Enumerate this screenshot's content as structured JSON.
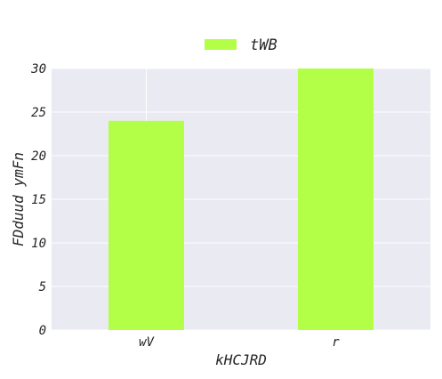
{
  "chart_data": {
    "type": "bar",
    "title": "",
    "xlabel": "kHCJRD",
    "ylabel": "FDduud ymFn",
    "categories": [
      "wV",
      "r"
    ],
    "series": [
      {
        "name": "tWB",
        "values": [
          24,
          30
        ]
      }
    ],
    "ylim": [
      0,
      30
    ],
    "yticks": [
      0,
      5,
      10,
      15,
      20,
      25,
      30
    ],
    "grid": true,
    "legend": "top-center",
    "colors": {
      "bar": "#b3ff47",
      "plot_background": "#eaeaf2",
      "grid": "#ffffff",
      "text": "#262626"
    }
  }
}
